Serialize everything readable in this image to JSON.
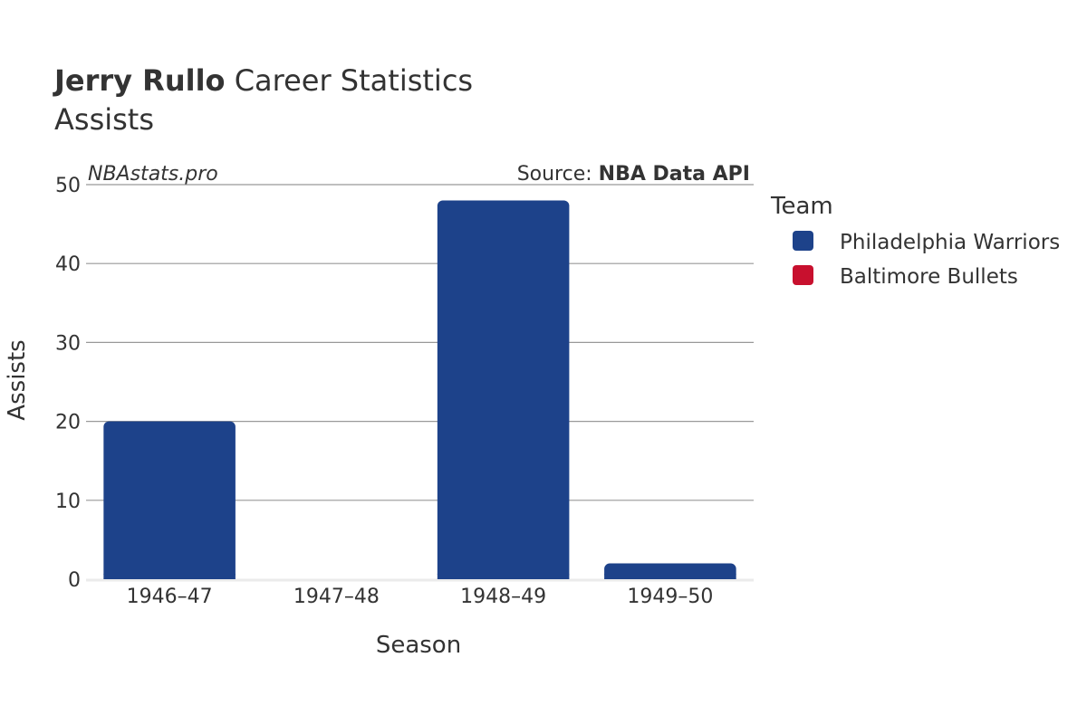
{
  "title": {
    "bold": "Jerry Rullo",
    "rest": " Career Statistics"
  },
  "subtitle": "Assists",
  "watermark": "NBAstats.pro",
  "source": {
    "prefix": "Source: ",
    "name": "NBA Data API"
  },
  "legend": {
    "title": "Team",
    "items": [
      {
        "label": "Philadelphia Warriors",
        "color": "#1d428a"
      },
      {
        "label": "Baltimore Bullets",
        "color": "#c8102e"
      }
    ]
  },
  "chart_data": {
    "type": "bar",
    "title": "Jerry Rullo Career Statistics",
    "subtitle": "Assists",
    "xlabel": "Season",
    "ylabel": "Assists",
    "categories": [
      "1946–47",
      "1947–48",
      "1948–49",
      "1949–50"
    ],
    "yticks": [
      0,
      10,
      20,
      30,
      40,
      50
    ],
    "ylim": [
      0,
      50
    ],
    "grid": true,
    "legend_position": "right",
    "series": [
      {
        "name": "Philadelphia Warriors",
        "color": "#1d428a",
        "values": [
          20,
          0,
          48,
          2
        ]
      },
      {
        "name": "Baltimore Bullets",
        "color": "#c8102e",
        "values": [
          0,
          0,
          0,
          0
        ]
      }
    ]
  }
}
